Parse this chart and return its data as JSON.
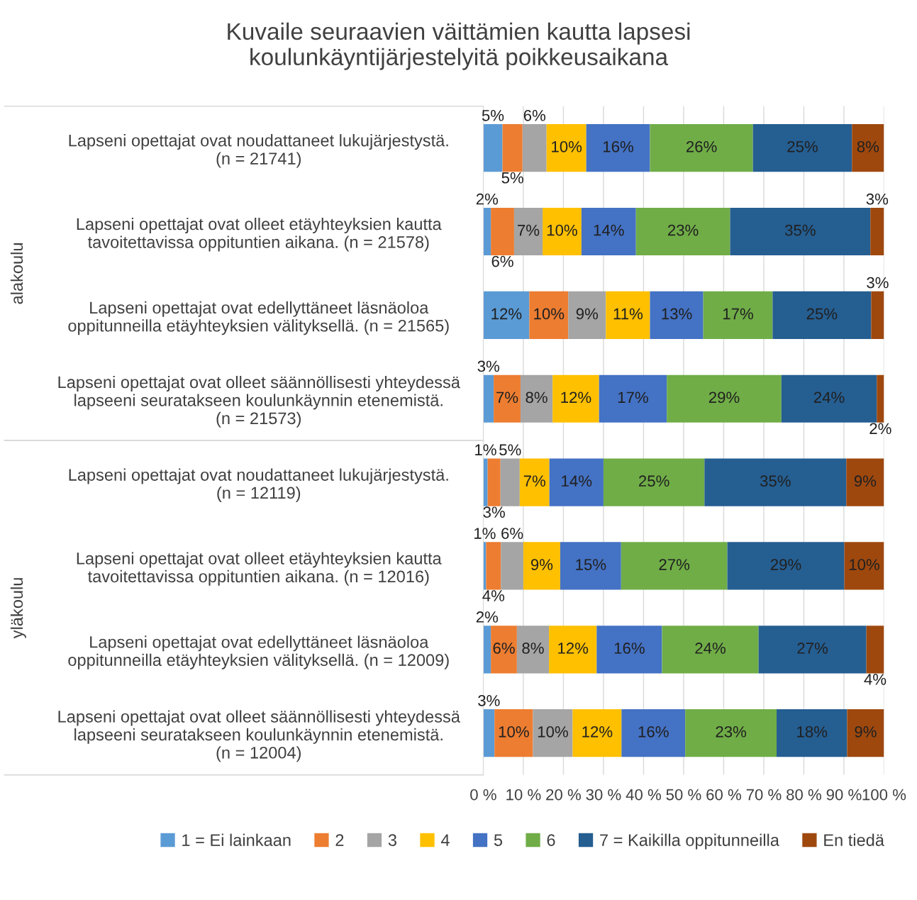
{
  "chart_data": {
    "type": "bar",
    "orientation": "horizontal",
    "stacked": true,
    "title": "Kuvaile seuraavien väittämien kautta lapsesi\nkoulunkäyntijärjestelyitä poikkeusaikana",
    "categories": [
      "Lapseni opettajat ovat noudattaneet lukujärjestystä.\n(n = 21741)",
      "Lapseni opettajat ovat olleet etäyhteyksien kautta\ntavoitettavissa oppituntien aikana. (n = 21578)",
      "Lapseni opettajat ovat edellyttäneet läsnäoloa\noppitunneilla etäyhteyksien välityksellä. (n = 21565)",
      "Lapseni opettajat ovat olleet säännöllisesti yhteydessä\nlapseeni seuratakseen koulunkäynnin etenemistä.\n(n = 21573)",
      "Lapseni opettajat ovat noudattaneet lukujärjestystä.\n(n = 12119)",
      "Lapseni opettajat ovat olleet etäyhteyksien kautta\ntavoitettavissa oppituntien aikana. (n = 12016)",
      "Lapseni opettajat ovat edellyttäneet läsnäoloa\noppitunneilla etäyhteyksien välityksellä. (n = 12009)",
      "Lapseni opettajat ovat olleet säännöllisesti yhteydessä\nlapseeni seuratakseen koulunkäynnin etenemistä.\n(n = 12004)"
    ],
    "annotations": [
      "alakoulu",
      "yläkoulu"
    ],
    "xlim": [
      0,
      100
    ],
    "xticks": [
      {
        "value": 0,
        "label": "0 %"
      },
      {
        "value": 10,
        "label": "10 %"
      },
      {
        "value": 20,
        "label": "20 %"
      },
      {
        "value": 30,
        "label": "30 %"
      },
      {
        "value": 40,
        "label": "40 %"
      },
      {
        "value": 50,
        "label": "50 %"
      },
      {
        "value": 60,
        "label": "60 %"
      },
      {
        "value": 70,
        "label": "70 %"
      },
      {
        "value": 80,
        "label": "80 %"
      },
      {
        "value": 90,
        "label": "90 %"
      },
      {
        "value": 100,
        "label": "100 %"
      }
    ],
    "grid": "x",
    "legend": "bottom",
    "series": [
      {
        "name": "1 = Ei lainkaan",
        "color": "#5b9bd5",
        "values": [
          4.8,
          1.9,
          11.5,
          2.6,
          1.1,
          0.7,
          1.9,
          2.8
        ],
        "value_labels": [
          "5%",
          "2%",
          "12%",
          "3%",
          "1%",
          "1%",
          "2%",
          "3%"
        ]
      },
      {
        "name": "2",
        "color": "#ed7d31",
        "values": [
          5.0,
          5.8,
          9.7,
          6.7,
          3.2,
          3.7,
          6.5,
          9.6
        ],
        "value_labels": [
          "5%",
          "6%",
          "10%",
          "7%",
          "3%",
          "4%",
          "6%",
          "10%"
        ]
      },
      {
        "name": "3",
        "color": "#a5a5a5",
        "values": [
          6.0,
          7.1,
          9.4,
          8.0,
          4.8,
          5.6,
          8.0,
          9.9
        ],
        "value_labels": [
          "6%",
          "7%",
          "9%",
          "8%",
          "5%",
          "6%",
          "8%",
          "10%"
        ]
      },
      {
        "name": "4",
        "color": "#ffc000",
        "values": [
          9.9,
          9.7,
          11.0,
          11.6,
          7.4,
          9.2,
          11.9,
          12.2
        ],
        "value_labels": [
          "10%",
          "10%",
          "11%",
          "12%",
          "7%",
          "9%",
          "12%",
          "12%"
        ]
      },
      {
        "name": "5",
        "color": "#4472c4",
        "values": [
          15.9,
          13.6,
          13.3,
          16.9,
          13.5,
          15.2,
          16.3,
          15.9
        ],
        "value_labels": [
          "16%",
          "14%",
          "13%",
          "17%",
          "14%",
          "15%",
          "16%",
          "16%"
        ]
      },
      {
        "name": "6",
        "color": "#70ad47",
        "values": [
          25.7,
          23.5,
          17.3,
          28.6,
          25.2,
          26.5,
          24.1,
          22.8
        ],
        "value_labels": [
          "26%",
          "23%",
          "17%",
          "29%",
          "25%",
          "27%",
          "24%",
          "23%"
        ]
      },
      {
        "name": "7 = Kaikilla oppitunneilla",
        "color": "#255e91",
        "values": [
          24.7,
          35.0,
          24.6,
          23.8,
          35.4,
          29.2,
          26.9,
          17.6
        ],
        "value_labels": [
          "25%",
          "35%",
          "25%",
          "24%",
          "35%",
          "29%",
          "27%",
          "18%"
        ]
      },
      {
        "name": "En tiedä",
        "color": "#9e480e",
        "values": [
          8.0,
          3.4,
          3.2,
          1.8,
          9.4,
          9.9,
          4.4,
          9.2
        ],
        "value_labels": [
          "8%",
          "3%",
          "3%",
          "2%",
          "9%",
          "10%",
          "4%",
          "9%"
        ]
      }
    ]
  }
}
